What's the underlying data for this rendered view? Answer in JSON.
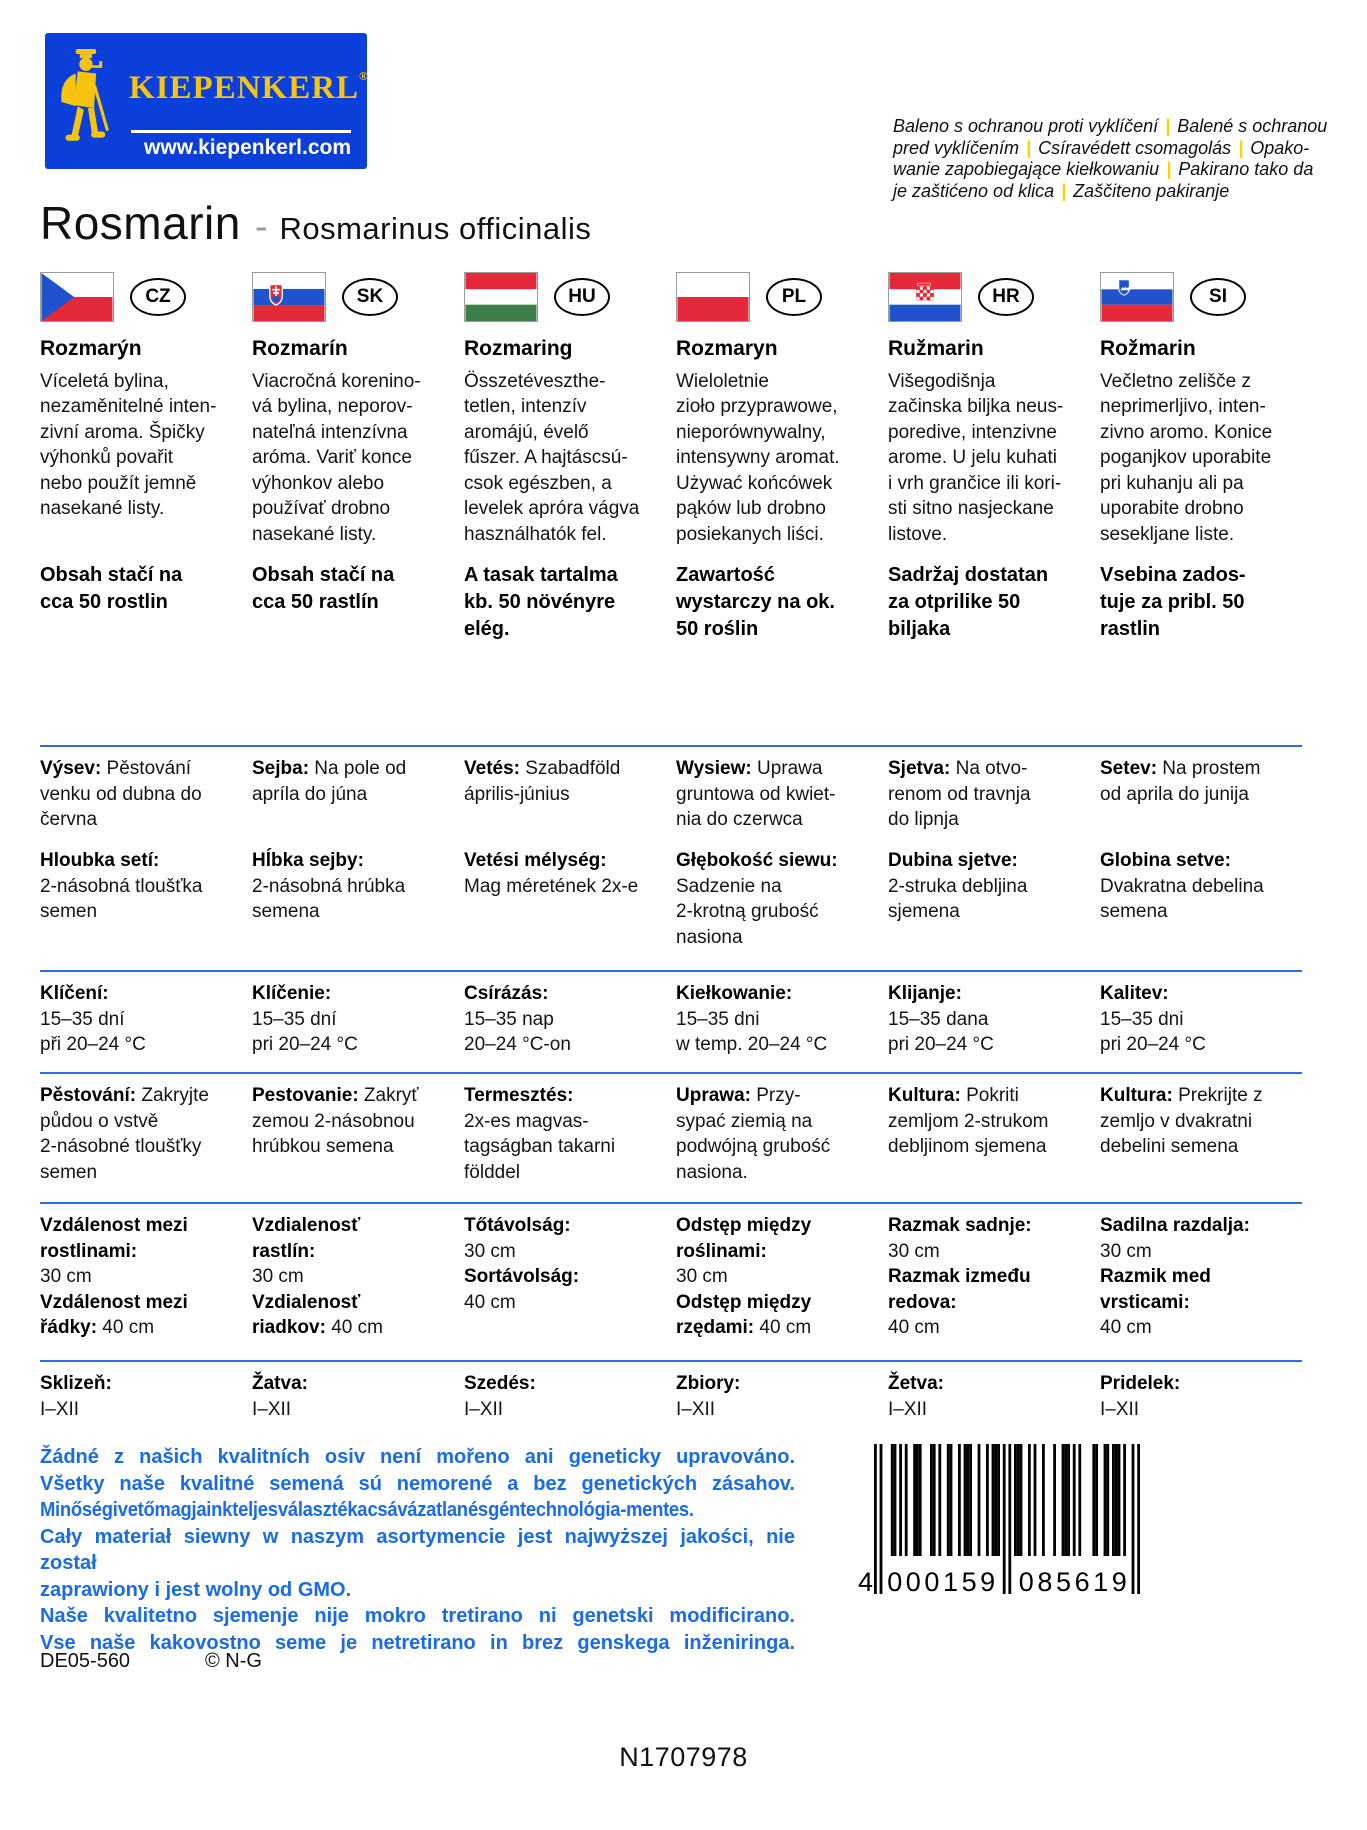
{
  "brand": {
    "name": "KIEPENKERL",
    "registered": "®",
    "website": "www.kiepenkerl.com"
  },
  "protection_notice": {
    "lines": [
      "Baleno s ochranou proti vyklíčení | Balené s ochranou",
      "pred vyklíčením | Csíravédett csomagolás | Opako-",
      "wanie zapobiegające kiełkowaniu | Pakirano tako da",
      "je zaštićeno od klica | Zaščiteno pakiranje"
    ]
  },
  "title": {
    "common_name": "Rosmarin",
    "separator": "-",
    "botanical_name": "Rosmarinus officinalis"
  },
  "columns": [
    {
      "code": "CZ",
      "name": "Rozmarýn",
      "description": "Víceletá bylina,\nnezaměnitelné inten-\nzivní aroma. Špičky\nvýhonků povařit\nnebo použít jemně\nnasekané listy.",
      "content": "Obsah stačí na\ncca 50 rostlin",
      "sowing": {
        "label": "Výsev:",
        "text": " Pěstování\nvenku od dubna do\nčervna"
      },
      "depth": {
        "label": "Hloubka setí:",
        "text": "\n2-násobná tloušťka\nsemen"
      },
      "germination": {
        "label": "Klíčení:",
        "text": "\n15–35 dní\npři 20–24 °C"
      },
      "culture": {
        "label": "Pěstování:",
        "text": " Zakryjte\npůdou o vstvě\n2-násobné tloušťky\nsemen"
      },
      "distance1": {
        "label": "Vzdálenost mezi\nrostlinami:",
        "text": "\n30 cm"
      },
      "distance2": {
        "label": "Vzdálenost mezi\nřádky:",
        "text": " 40 cm",
        "gap": false
      },
      "harvest": {
        "label": "Sklizeň:",
        "text": "\nI–XII"
      }
    },
    {
      "code": "SK",
      "name": "Rozmarín",
      "description": "Viacročná korenino-\nvá bylina, neporov-\nnateľná intenzívna\naróma. Variť konce\nvýhonkov alebo\npoužívať drobno\nnasekané listy.",
      "content": "Obsah stačí na\ncca 50 rastlín",
      "sowing": {
        "label": "Sejba:",
        "text": " Na pole od\napríla do júna"
      },
      "depth": {
        "label": "Hĺbka sejby:",
        "text": "\n2-násobná hrúbka\nsemena"
      },
      "germination": {
        "label": "Klíčenie:",
        "text": "\n15–35 dní\npri 20–24 °C"
      },
      "culture": {
        "label": "Pestovanie:",
        "text": " Zakryť\nzemou 2-násobnou\nhrúbkou semena"
      },
      "distance1": {
        "label": "Vzdialenosť\nrastlín:",
        "text": "\n30 cm"
      },
      "distance2": {
        "label": "Vzdialenosť\nriadkov:",
        "text": " 40 cm",
        "gap": false
      },
      "harvest": {
        "label": "Žatva:",
        "text": "\nI–XII"
      }
    },
    {
      "code": "HU",
      "name": "Rozmaring",
      "description": "Összetéveszthe-\ntetlen, intenzív\naromájú, évelő\nfűszer. A hajtáscsú-\ncsok egészben, a\nlevelek apróra vágva\nhasználhatók fel.",
      "content": "A tasak tartalma\nkb. 50 növényre\nelég.",
      "sowing": {
        "label": "Vetés:",
        "text": " Szabadföld\náprilis-június"
      },
      "depth": {
        "label": "Vetési mélység:",
        "text": "\nMag méretének 2x-e"
      },
      "germination": {
        "label": "Csírázás:",
        "text": "\n15–35 nap\n20–24 °C-on"
      },
      "culture": {
        "label": "Termesztés:",
        "text": "\n2x-es magvas-\ntagságban takarni\nfölddel"
      },
      "distance1": {
        "label": "Tőtávolság:",
        "text": "\n30 cm"
      },
      "distance2": {
        "label": "Sortávolság:",
        "text": "\n40 cm",
        "gap": true
      },
      "harvest": {
        "label": "Szedés:",
        "text": "\nI–XII"
      }
    },
    {
      "code": "PL",
      "name": "Rozmaryn",
      "description": "Wieloletnie\nzioło przyprawowe,\nnieporównywalny,\nintensywny aromat.\nUżywać końcówek\npąków lub drobno\nposiekanych liści.",
      "content": "Zawartość\nwystarczy na ok.\n50 roślin",
      "sowing": {
        "label": "Wysiew:",
        "text": " Uprawa\ngruntowa od kwiet-\nnia do czerwca"
      },
      "depth": {
        "label": "Głębokość siewu:",
        "text": "\nSadzenie na\n2-krotną grubość\nnasiona"
      },
      "germination": {
        "label": "Kiełkowanie:",
        "text": "\n15–35 dni\nw temp. 20–24 °C"
      },
      "culture": {
        "label": "Uprawa:",
        "text": " Przy-\nsypać ziemią na\npodwójną grubość\nnasiona."
      },
      "distance1": {
        "label": "Odstęp między\nroślinami:",
        "text": "\n30 cm"
      },
      "distance2": {
        "label": "Odstęp między\nrzędami:",
        "text": " 40 cm",
        "gap": false
      },
      "harvest": {
        "label": "Zbiory:",
        "text": "\nI–XII"
      }
    },
    {
      "code": "HR",
      "name": "Ružmarin",
      "description": "Višegodišnja\nzačinska biljka neus-\nporedive, intenzivne\narome. U jelu kuhati\ni vrh grančice ili kori-\nsti sitno nasjeckane\nlistove.",
      "content": "Sadržaj dostatan\nza otprilike 50\nbiljaka",
      "sowing": {
        "label": "Sjetva:",
        "text": " Na otvo-\nrenom od travnja\ndo lipnja"
      },
      "depth": {
        "label": "Dubina sjetve:",
        "text": "\n2-struka debljina\nsjemena"
      },
      "germination": {
        "label": "Klijanje:",
        "text": "\n15–35 dana\npri 20–24 °C"
      },
      "culture": {
        "label": "Kultura:",
        "text": " Pokriti\nzemljom 2-strukom\ndebljinom sjemena"
      },
      "distance1": {
        "label": "Razmak sadnje:",
        "text": "\n30 cm"
      },
      "distance2": {
        "label": "Razmak između\nredova:",
        "text": "\n40 cm",
        "gap": false
      },
      "harvest": {
        "label": "Žetva:",
        "text": "\nI–XII"
      }
    },
    {
      "code": "SI",
      "name": "Rožmarin",
      "description": "Večletno zelišče z\nneprimerljivo, inten-\nzivno aromo. Konice\npoganjkov uporabite\npri kuhanju ali pa\nuporabite drobno\nsesekljane liste.",
      "content": "Vsebina zados-\ntuje za pribl. 50\nrastlin",
      "sowing": {
        "label": "Setev:",
        "text": " Na prostem\nod aprila do junija"
      },
      "depth": {
        "label": "Globina setve:",
        "text": "\nDvakratna debelina\nsemena"
      },
      "germination": {
        "label": "Kalitev:",
        "text": "\n15–35 dni\npri 20–24 °C"
      },
      "culture": {
        "label": "Kultura:",
        "text": " Prekrijte z\nzemljo v dvakratni\ndebelini semena"
      },
      "distance1": {
        "label": "Sadilna razdalja:",
        "text": "\n30 cm"
      },
      "distance2": {
        "label": "Razmik med\nvrsticami:",
        "text": "\n40 cm",
        "gap": false
      },
      "harvest": {
        "label": "Pridelek:",
        "text": "\nI–XII"
      }
    }
  ],
  "disclaimer": {
    "lines": [
      {
        "text": "Žádné z našich kvalitních osiv není mořeno ani geneticky upravováno.",
        "justify": true,
        "tight": false
      },
      {
        "text": "Všetky naše kvalitné semená sú nemorené a bez genetických zásahov.",
        "justify": true,
        "tight": false
      },
      {
        "text": "Minőségi vetőmagjaink teljes választéka csávázatlan és géntechnológia-mentes.",
        "justify": false,
        "tight": true
      },
      {
        "text": "Cały materiał siewny w naszym asortymencie jest najwyższej jakości, nie został",
        "justify": true,
        "tight": false
      },
      {
        "text": "zaprawiony i jest wolny od GMO.",
        "justify": false,
        "tight": false
      },
      {
        "text": "Naše kvalitetno sjemenje nije mokro tretirano ni genetski modificirano.",
        "justify": true,
        "tight": false
      },
      {
        "text": "Vse naše kakovostno seme je netretirano in brez genskega inženiringa.",
        "justify": true,
        "tight": false
      }
    ]
  },
  "barcode": {
    "ean": "4000159085619",
    "groups": [
      "4",
      "000159",
      "085619"
    ],
    "pattern": "10100011010100111000110100110010111001001011101010111001010010001001110101000011001101110100101"
  },
  "footer": {
    "batch_code": "DE05-560",
    "copyright": "© N-G",
    "article_number": "N1707978"
  },
  "colors": {
    "logo_blue": "#0b3fd9",
    "logo_yellow": "#f6c40e",
    "divider_blue": "#2f6de2",
    "text_blue": "#1a6be6",
    "pipe_yellow": "#ffd400"
  }
}
